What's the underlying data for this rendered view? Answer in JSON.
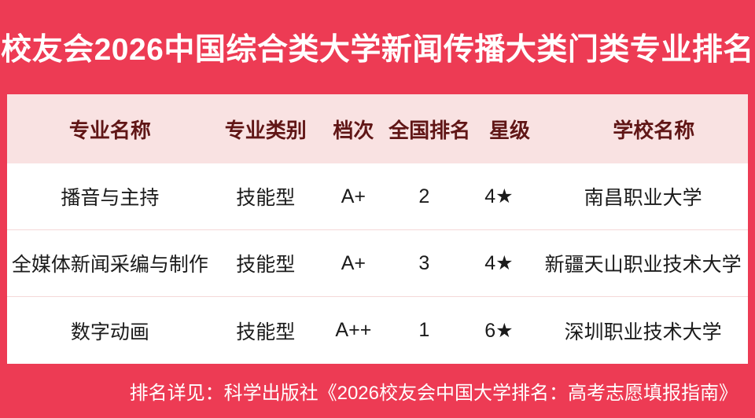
{
  "chart_data": {
    "type": "table",
    "title": "校友会2026中国综合类大学新闻传播大类门类专业排名",
    "columns": [
      "专业名称",
      "专业类别",
      "档次",
      "全国排名",
      "星级",
      "学校名称"
    ],
    "rows": [
      [
        "播音与主持",
        "技能型",
        "A+",
        "2",
        "4★",
        "南昌职业大学"
      ],
      [
        "全媒体新闻采编与制作",
        "技能型",
        "A+",
        "3",
        "4★",
        "新疆天山职业技术大学"
      ],
      [
        "数字动画",
        "技能型",
        "A++",
        "1",
        "6★",
        "深圳职业技术大学"
      ]
    ],
    "footnote": "排名详见：科学出版社《2026校友会中国大学排名：高考志愿填报指南》"
  },
  "colors": {
    "brand_red": "#ed3b54",
    "header_bg": "#f9e2e2",
    "header_text": "#601616",
    "body_text": "#1b1b1b",
    "divider": "#f5d8d8",
    "title_text": "#ffffff"
  }
}
